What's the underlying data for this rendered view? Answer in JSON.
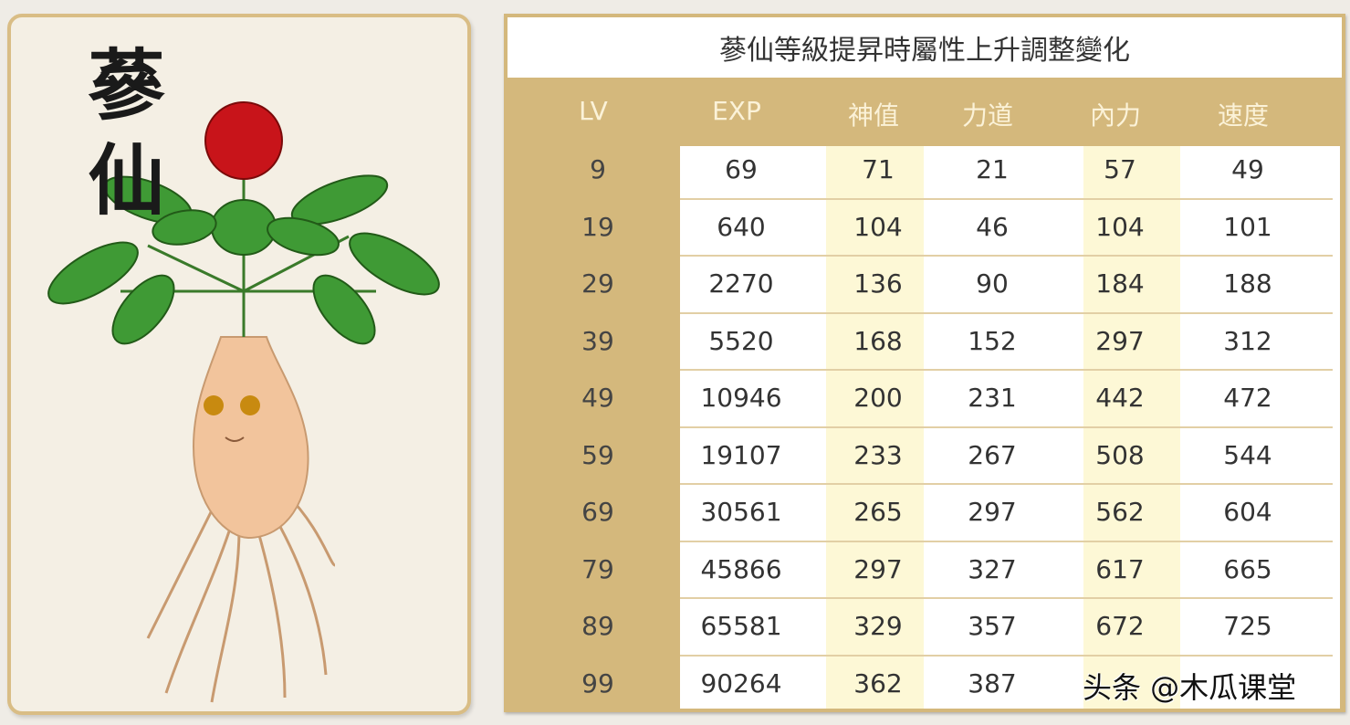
{
  "card": {
    "title": "蔘仙",
    "image": "ginseng-character-illustration"
  },
  "table": {
    "title": "蔘仙等級提昇時屬性上升調整變化",
    "headers": [
      "LV",
      "EXP",
      "神值",
      "力道",
      "內力",
      "速度"
    ],
    "rows": [
      [
        "9",
        "69",
        "71",
        "21",
        "57",
        "49"
      ],
      [
        "19",
        "640",
        "104",
        "46",
        "104",
        "101"
      ],
      [
        "29",
        "2270",
        "136",
        "90",
        "184",
        "188"
      ],
      [
        "39",
        "5520",
        "168",
        "152",
        "297",
        "312"
      ],
      [
        "49",
        "10946",
        "200",
        "231",
        "442",
        "472"
      ],
      [
        "59",
        "19107",
        "233",
        "267",
        "508",
        "544"
      ],
      [
        "69",
        "30561",
        "265",
        "297",
        "562",
        "604"
      ],
      [
        "79",
        "45866",
        "297",
        "327",
        "617",
        "665"
      ],
      [
        "89",
        "65581",
        "329",
        "357",
        "672",
        "725"
      ],
      [
        "99",
        "90264",
        "362",
        "387",
        "",
        ""
      ]
    ]
  },
  "watermark": "头条 @木瓜课堂",
  "colors": {
    "header": "#d4b87c",
    "highlight": "#fdf8d6"
  }
}
